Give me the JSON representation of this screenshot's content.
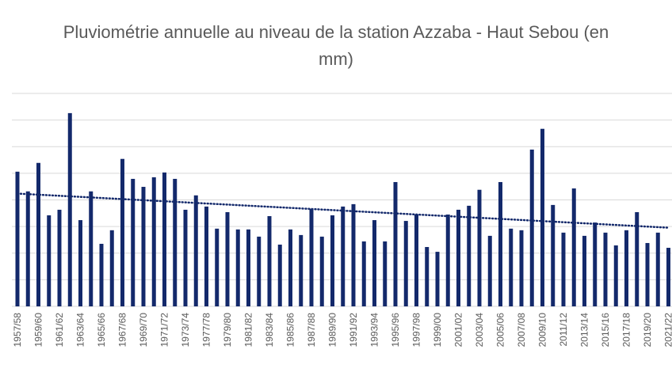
{
  "chart_data": {
    "type": "bar",
    "title": "Pluviométrie annuelle au niveau de la station Azzaba - Haut Sebou (en mm)",
    "categories": [
      "1957/58",
      null,
      "1959/60",
      null,
      "1961/62",
      null,
      "1963/64",
      null,
      "1965/66",
      null,
      "1967/68",
      null,
      "1969/70",
      null,
      "1971/72",
      null,
      "1973/74",
      null,
      "1977/78",
      null,
      "1979/80",
      null,
      "1981/82",
      null,
      "1983/84",
      null,
      "1985/86",
      null,
      "1987/88",
      null,
      "1989/90",
      null,
      "1991/92",
      null,
      "1993/94",
      null,
      "1995/96",
      null,
      "1997/98",
      null,
      "1999/00",
      null,
      "2001/02",
      null,
      "2003/04",
      null,
      "2005/06",
      null,
      "2007/08",
      null,
      "2009/10",
      null,
      "2011/12",
      null,
      "2013/14",
      null,
      "2015/16",
      null,
      "2017/18",
      null,
      "2019/20",
      null,
      "2021/22"
    ],
    "values": [
      5.06,
      4.32,
      5.39,
      3.42,
      3.63,
      7.26,
      3.24,
      4.32,
      2.35,
      2.86,
      5.54,
      4.79,
      4.49,
      4.85,
      5.03,
      4.79,
      3.63,
      4.17,
      3.75,
      2.92,
      3.54,
      2.89,
      2.89,
      2.62,
      3.39,
      2.32,
      2.89,
      2.68,
      3.66,
      2.62,
      3.42,
      3.75,
      3.84,
      2.44,
      3.24,
      2.44,
      4.67,
      3.21,
      3.45,
      2.23,
      2.05,
      3.45,
      3.63,
      3.78,
      4.38,
      2.65,
      4.67,
      2.92,
      2.86,
      5.89,
      6.67,
      3.81,
      2.77,
      4.43,
      2.65,
      3.15,
      2.77,
      2.29,
      2.86,
      3.54,
      2.38,
      2.77,
      2.2
    ],
    "color": "#13296b",
    "ylim": [
      0,
      8
    ],
    "yticks": [
      0,
      1,
      2,
      3,
      4,
      5,
      6,
      7,
      8
    ],
    "grid": true,
    "y_tick_labels": false,
    "trendline": "linear"
  }
}
